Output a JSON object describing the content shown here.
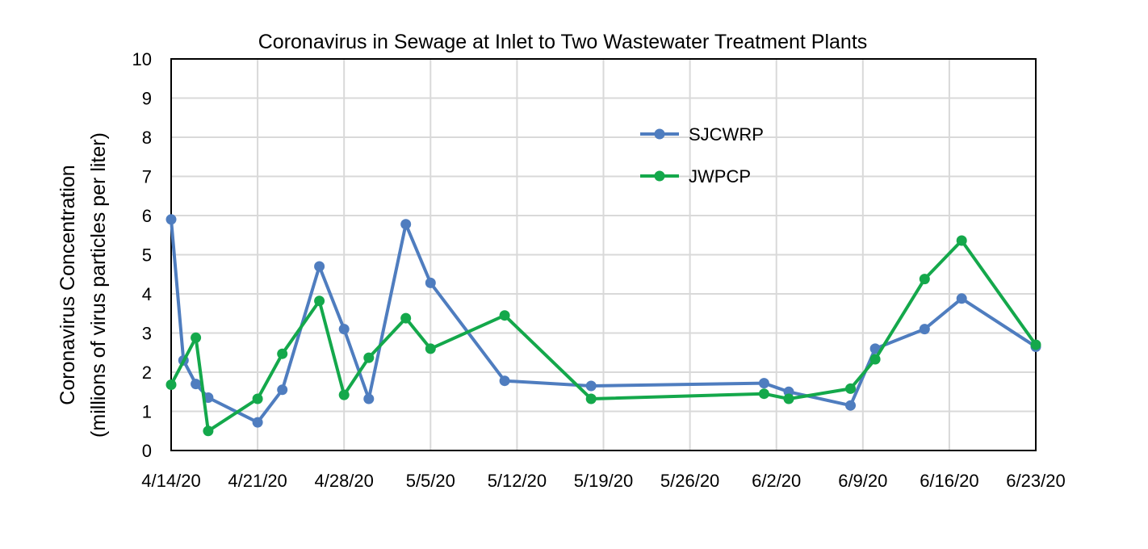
{
  "chart_data": {
    "type": "line",
    "title": "Coronavirus in Sewage at Inlet to Two  Wastewater Treatment Plants",
    "xlabel": "",
    "ylabel_line1": "Coronavirus Concentration",
    "ylabel_line2": "(millions of virus particles per liter)",
    "ylim": [
      0,
      10
    ],
    "yticks": [
      0,
      1,
      2,
      3,
      4,
      5,
      6,
      7,
      8,
      9,
      10
    ],
    "xlim": [
      "2020-04-14",
      "2020-06-23"
    ],
    "xticks": [
      "4/14/20",
      "4/21/20",
      "4/28/20",
      "5/5/20",
      "5/12/20",
      "5/19/20",
      "5/26/20",
      "6/2/20",
      "6/9/20",
      "6/16/20",
      "6/23/20"
    ],
    "grid": true,
    "legend_position": "upper-center",
    "series": [
      {
        "name": "SJCWRP",
        "color": "#4f7dbf",
        "points": [
          [
            "2020-04-14",
            5.9
          ],
          [
            "2020-04-15",
            2.3
          ],
          [
            "2020-04-16",
            1.7
          ],
          [
            "2020-04-17",
            1.35
          ],
          [
            "2020-04-21",
            0.72
          ],
          [
            "2020-04-23",
            1.55
          ],
          [
            "2020-04-26",
            4.7
          ],
          [
            "2020-04-28",
            3.1
          ],
          [
            "2020-04-30",
            1.32
          ],
          [
            "2020-05-03",
            5.78
          ],
          [
            "2020-05-05",
            4.28
          ],
          [
            "2020-05-11",
            1.78
          ],
          [
            "2020-05-18",
            1.65
          ],
          [
            "2020-06-01",
            1.72
          ],
          [
            "2020-06-03",
            1.5
          ],
          [
            "2020-06-08",
            1.15
          ],
          [
            "2020-06-10",
            2.6
          ],
          [
            "2020-06-14",
            3.1
          ],
          [
            "2020-06-17",
            3.88
          ],
          [
            "2020-06-23",
            2.65
          ]
        ]
      },
      {
        "name": "JWPCP",
        "color": "#14a84b",
        "points": [
          [
            "2020-04-14",
            1.68
          ],
          [
            "2020-04-16",
            2.88
          ],
          [
            "2020-04-17",
            0.5
          ],
          [
            "2020-04-21",
            1.32
          ],
          [
            "2020-04-23",
            2.47
          ],
          [
            "2020-04-26",
            3.82
          ],
          [
            "2020-04-28",
            1.42
          ],
          [
            "2020-04-30",
            2.37
          ],
          [
            "2020-05-03",
            3.38
          ],
          [
            "2020-05-05",
            2.6
          ],
          [
            "2020-05-11",
            3.45
          ],
          [
            "2020-05-18",
            1.32
          ],
          [
            "2020-06-01",
            1.45
          ],
          [
            "2020-06-03",
            1.32
          ],
          [
            "2020-06-08",
            1.58
          ],
          [
            "2020-06-10",
            2.33
          ],
          [
            "2020-06-14",
            4.38
          ],
          [
            "2020-06-17",
            5.36
          ],
          [
            "2020-06-23",
            2.7
          ]
        ]
      }
    ]
  }
}
